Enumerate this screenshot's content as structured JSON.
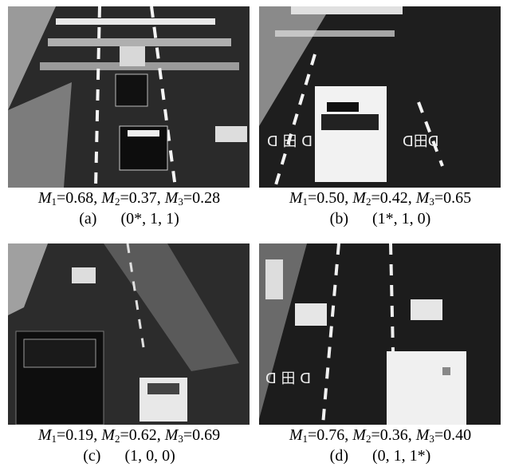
{
  "panels": [
    {
      "metrics": [
        {
          "symbol": "M",
          "sub": "1",
          "value": "=0.68,"
        },
        {
          "symbol": "M",
          "sub": "2",
          "value": "=0.37,"
        },
        {
          "symbol": "M",
          "sub": "3",
          "value": "=0.28"
        }
      ],
      "label": "(a)",
      "code": "(0*, 1, 1)"
    },
    {
      "metrics": [
        {
          "symbol": "M",
          "sub": "1",
          "value": "=0.50,"
        },
        {
          "symbol": "M",
          "sub": "2",
          "value": "=0.42,"
        },
        {
          "symbol": "M",
          "sub": "3",
          "value": "=0.65"
        }
      ],
      "label": "(b)",
      "code": "(1*, 1, 0)"
    },
    {
      "metrics": [
        {
          "symbol": "M",
          "sub": "1",
          "value": "=0.19,"
        },
        {
          "symbol": "M",
          "sub": "2",
          "value": "=0.62,"
        },
        {
          "symbol": "M",
          "sub": "3",
          "value": "=0.69"
        }
      ],
      "label": "(c)",
      "code": "(1, 0, 0)"
    },
    {
      "metrics": [
        {
          "symbol": "M",
          "sub": "1",
          "value": "=0.76,"
        },
        {
          "symbol": "M",
          "sub": "2",
          "value": "=0.36,"
        },
        {
          "symbol": "M",
          "sub": "3",
          "value": "=0.40"
        }
      ],
      "label": "(d)",
      "code": "(0, 1, 1*)"
    }
  ]
}
